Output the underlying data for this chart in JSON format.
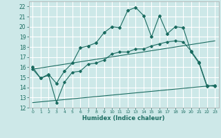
{
  "xlabel": "Humidex (Indice chaleur)",
  "xlim": [
    -0.5,
    23.5
  ],
  "ylim": [
    12,
    22.5
  ],
  "yticks": [
    12,
    13,
    14,
    15,
    16,
    17,
    18,
    19,
    20,
    21,
    22
  ],
  "xticks": [
    0,
    1,
    2,
    3,
    4,
    5,
    6,
    7,
    8,
    9,
    10,
    11,
    12,
    13,
    14,
    15,
    16,
    17,
    18,
    19,
    20,
    21,
    22,
    23
  ],
  "bg_color": "#cde8e8",
  "grid_color": "#ffffff",
  "line_color": "#1a6b60",
  "series1_x": [
    0,
    1,
    2,
    3,
    4,
    5,
    6,
    7,
    8,
    9,
    10,
    11,
    12,
    13,
    14,
    15,
    16,
    17,
    18,
    19,
    20,
    21,
    22,
    23
  ],
  "series1_y": [
    16.0,
    14.9,
    15.3,
    14.4,
    15.6,
    16.4,
    17.9,
    18.1,
    18.4,
    19.4,
    20.0,
    19.9,
    21.6,
    21.9,
    21.1,
    19.0,
    21.1,
    19.3,
    20.0,
    19.9,
    17.5,
    16.4,
    14.1,
    14.2
  ],
  "series2_x": [
    0,
    1,
    2,
    3,
    4,
    5,
    6,
    7,
    8,
    9,
    10,
    11,
    12,
    13,
    14,
    15,
    16,
    17,
    18,
    19,
    20,
    21,
    22,
    23
  ],
  "series2_y": [
    15.8,
    14.9,
    15.2,
    12.5,
    14.5,
    15.5,
    15.6,
    16.3,
    16.4,
    16.7,
    17.3,
    17.5,
    17.5,
    17.8,
    17.8,
    18.1,
    18.3,
    18.5,
    18.6,
    18.5,
    17.6,
    16.5,
    14.2,
    14.1
  ],
  "series3_x": [
    0,
    23
  ],
  "series3_y": [
    15.8,
    18.6
  ],
  "series4_x": [
    0,
    23
  ],
  "series4_y": [
    12.5,
    14.2
  ]
}
